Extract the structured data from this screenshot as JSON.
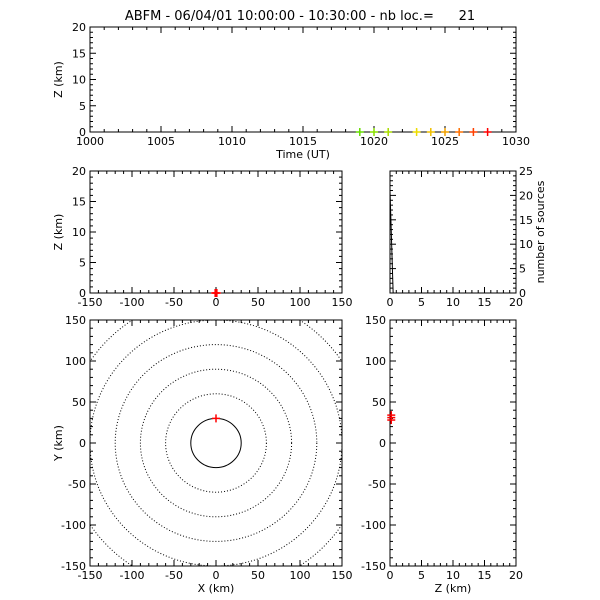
{
  "title": "ABFM - 06/04/01 10:00:00 - 10:30:00 - nb loc.=      21",
  "chart_data": [
    {
      "id": "time-height",
      "type": "scatter",
      "xlabel": "Time (UT)",
      "ylabel": "Z (km)",
      "xlim": [
        1000,
        1030
      ],
      "ylim": [
        0,
        20
      ],
      "xticks": [
        1000,
        1005,
        1010,
        1015,
        1020,
        1025,
        1030
      ],
      "yticks": [
        0,
        5,
        10,
        15,
        20
      ],
      "points": [
        {
          "x": 1019,
          "y": 0,
          "color": "#66dd00"
        },
        {
          "x": 1020,
          "y": 0,
          "color": "#88e000"
        },
        {
          "x": 1021,
          "y": 0,
          "color": "#aadd00"
        },
        {
          "x": 1023,
          "y": 0,
          "color": "#eedd00"
        },
        {
          "x": 1024,
          "y": 0,
          "color": "#f0c000"
        },
        {
          "x": 1025,
          "y": 0,
          "color": "#f0a000"
        },
        {
          "x": 1026,
          "y": 0,
          "color": "#ff7000"
        },
        {
          "x": 1027,
          "y": 0,
          "color": "#ff4000"
        },
        {
          "x": 1028,
          "y": 0,
          "color": "#ff0000"
        }
      ]
    },
    {
      "id": "x-height",
      "type": "scatter",
      "xlabel": "",
      "ylabel": "Z (km)",
      "xlim": [
        -150,
        150
      ],
      "ylim": [
        0,
        20
      ],
      "xticks": [
        -150,
        -100,
        -50,
        0,
        50,
        100,
        150
      ],
      "yticks": [
        0,
        5,
        10,
        15,
        20
      ],
      "points": [
        {
          "x": -1,
          "y": 0,
          "color": "#ff0000"
        },
        {
          "x": 0,
          "y": 0,
          "color": "#ff0000"
        },
        {
          "x": 1,
          "y": 0,
          "color": "#ff0000"
        }
      ]
    },
    {
      "id": "height-histogram",
      "type": "line",
      "xlabel": "",
      "ylabel": "number of sources",
      "xlim": [
        0,
        20
      ],
      "ylim": [
        0,
        25
      ],
      "xticks": [
        0,
        5,
        10,
        15,
        20
      ],
      "yticks": [
        0,
        5,
        10,
        15,
        20,
        25
      ],
      "x": [
        0,
        0.5,
        20
      ],
      "y": [
        21,
        0,
        0
      ]
    },
    {
      "id": "plan-view",
      "type": "scatter",
      "xlabel": "X (km)",
      "ylabel": "Y (km)",
      "xlim": [
        -150,
        150
      ],
      "ylim": [
        -150,
        150
      ],
      "xticks": [
        -150,
        -100,
        -50,
        0,
        50,
        100,
        150
      ],
      "yticks": [
        -150,
        -100,
        -50,
        0,
        50,
        100,
        150
      ],
      "range_rings_km": [
        30,
        60,
        90,
        120,
        150,
        180
      ],
      "points": [
        {
          "x": 0,
          "y": 30,
          "color": "#ff0000"
        }
      ]
    },
    {
      "id": "height-y",
      "type": "scatter",
      "xlabel": "Z (km)",
      "ylabel": "",
      "xlim": [
        0,
        20
      ],
      "ylim": [
        -150,
        150
      ],
      "xticks": [
        0,
        5,
        10,
        15,
        20
      ],
      "yticks": [
        -150,
        -100,
        -50,
        0,
        50,
        100,
        150
      ],
      "points": [
        {
          "x": 0.2,
          "y": 28,
          "color": "#ff0000"
        },
        {
          "x": 0.2,
          "y": 31,
          "color": "#ff0000"
        },
        {
          "x": 0.2,
          "y": 34,
          "color": "#ff0000"
        }
      ]
    }
  ]
}
